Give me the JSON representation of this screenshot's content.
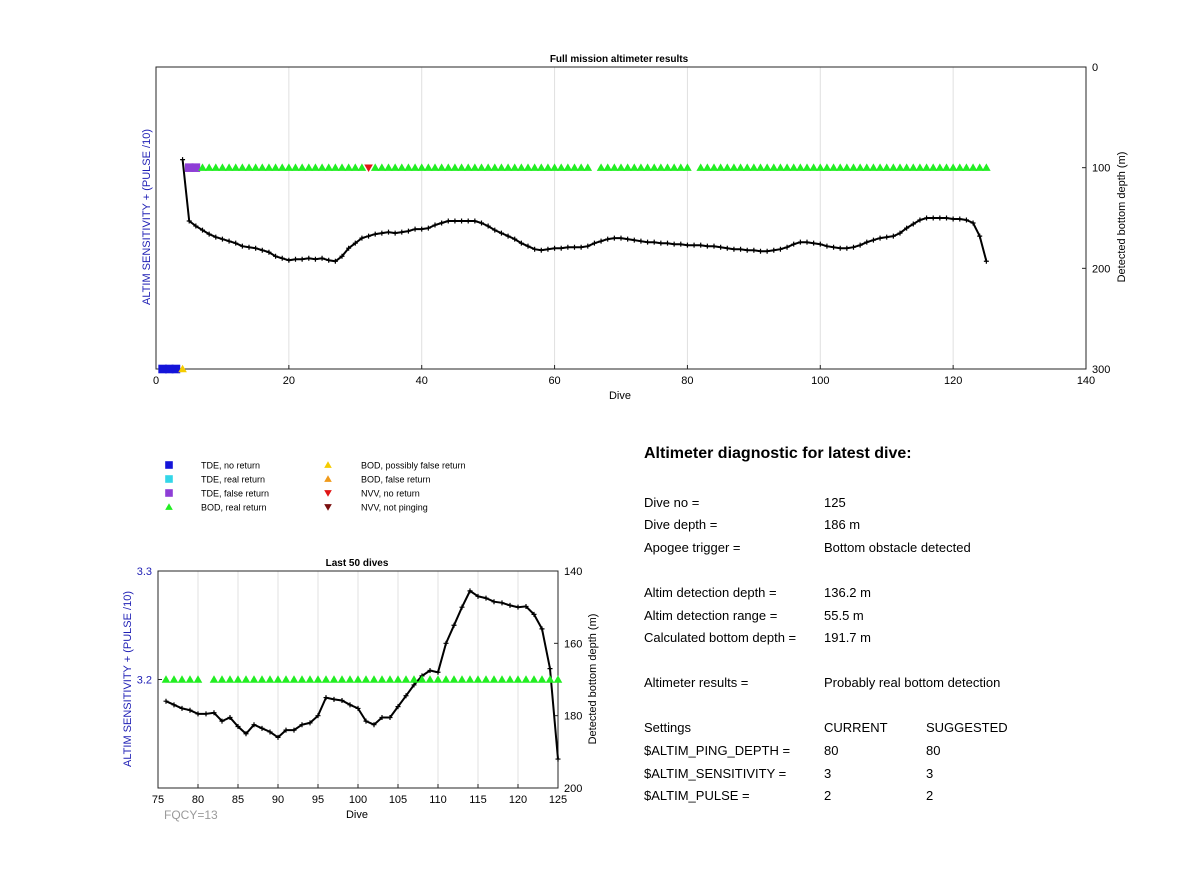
{
  "colors": {
    "TDE_no_return": "#1414d9",
    "TDE_real_return": "#33d6e8",
    "TDE_false_return": "#8e3ed6",
    "BOD_real_return": "#22ee22",
    "BOD_possibly_false_return": "#f5cc00",
    "BOD_false_return": "#f09a1a",
    "NVV_no_return": "#e01515",
    "NVV_not_pinging": "#7a0f0f",
    "depth_line": "#000000",
    "left_axis_label": "#1e1eb4",
    "grid": "#e0e0e0",
    "fqcy_text": "#9a9a9a"
  },
  "legend": [
    {
      "key": "TDE_no_return",
      "label": "TDE, no return",
      "marker": "square"
    },
    {
      "key": "TDE_real_return",
      "label": "TDE, real return",
      "marker": "square"
    },
    {
      "key": "TDE_false_return",
      "label": "TDE, false return",
      "marker": "square"
    },
    {
      "key": "BOD_real_return",
      "label": "BOD, real return",
      "marker": "triangle-up"
    },
    {
      "key": "BOD_possibly_false_return",
      "label": "BOD, possibly false return",
      "marker": "triangle-up"
    },
    {
      "key": "BOD_false_return",
      "label": "BOD, false return",
      "marker": "triangle-up"
    },
    {
      "key": "NVV_no_return",
      "label": "NVV, no return",
      "marker": "triangle-down"
    },
    {
      "key": "NVV_not_pinging",
      "label": "NVV, not pinging",
      "marker": "triangle-down"
    }
  ],
  "chart_data": [
    {
      "type": "line",
      "title": "Full mission altimeter results",
      "xlabel": "Dive",
      "ylabel": "ALTIM SENSITIVITY + (PULSE /10)",
      "ylabel_right": "Detected bottom depth (m)",
      "xlim": [
        0,
        140
      ],
      "xticks": [
        "0",
        "20",
        "40",
        "60",
        "80",
        "100",
        "120",
        "140"
      ],
      "yticks_right": [
        "0",
        "100",
        "200",
        "300"
      ],
      "ylim_right": [
        0,
        300
      ],
      "grid": "vertical",
      "depth_series": {
        "name": "Detected bottom depth (m)",
        "x": [
          4,
          5,
          6,
          7,
          8,
          9,
          10,
          11,
          12,
          13,
          14,
          15,
          16,
          17,
          18,
          19,
          20,
          21,
          22,
          23,
          24,
          25,
          26,
          27,
          28,
          29,
          30,
          31,
          32,
          33,
          34,
          35,
          36,
          37,
          38,
          39,
          40,
          41,
          42,
          43,
          44,
          45,
          46,
          47,
          48,
          49,
          50,
          51,
          52,
          53,
          54,
          55,
          56,
          57,
          58,
          59,
          60,
          61,
          62,
          63,
          64,
          65,
          66,
          67,
          68,
          69,
          70,
          71,
          72,
          73,
          74,
          75,
          76,
          77,
          78,
          79,
          80,
          81,
          82,
          83,
          84,
          85,
          86,
          87,
          88,
          89,
          90,
          91,
          92,
          93,
          94,
          95,
          96,
          97,
          98,
          99,
          100,
          101,
          102,
          103,
          104,
          105,
          106,
          107,
          108,
          109,
          110,
          111,
          112,
          113,
          114,
          115,
          116,
          117,
          118,
          119,
          120,
          121,
          122,
          123,
          124,
          125
        ],
        "values": [
          92,
          153,
          158,
          162,
          166,
          169,
          171,
          173,
          175,
          178,
          179,
          180,
          182,
          184,
          188,
          190,
          192,
          191,
          191,
          190,
          191,
          190,
          192,
          193,
          188,
          180,
          175,
          170,
          168,
          166,
          165,
          164,
          165,
          164,
          163,
          161,
          161,
          160,
          157,
          155,
          153,
          153,
          153,
          153,
          153,
          155,
          158,
          162,
          165,
          168,
          171,
          175,
          178,
          181,
          182,
          181,
          180,
          180,
          179,
          179,
          179,
          178,
          175,
          173,
          171,
          170,
          170,
          171,
          172,
          173,
          174,
          174,
          175,
          175,
          176,
          176,
          177,
          177,
          177,
          178,
          178,
          179,
          180,
          181,
          181,
          182,
          182,
          183,
          183,
          182,
          181,
          179,
          176,
          174,
          174,
          175,
          176,
          178,
          179,
          180,
          180,
          179,
          177,
          174,
          172,
          170,
          169,
          168,
          165,
          160,
          156,
          152,
          150,
          150,
          150,
          150,
          151,
          151,
          152,
          155,
          168,
          193
        ]
      },
      "status_markers": [
        {
          "key": "TDE_no_return",
          "x": [
            1,
            2,
            3
          ],
          "y": 3.0
        },
        {
          "key": "BOD_possibly_false_return",
          "x": [
            4
          ],
          "y": 3.0
        },
        {
          "key": "TDE_false_return",
          "x": [
            5,
            6
          ],
          "y": 3.2
        },
        {
          "key": "BOD_real_return",
          "x": [
            7,
            8,
            9,
            10,
            11,
            12,
            13,
            14,
            15,
            16,
            17,
            18,
            19,
            20,
            21,
            22,
            23,
            24,
            25,
            26,
            27,
            28,
            29,
            30,
            31,
            33,
            34,
            35,
            36,
            37,
            38,
            39,
            40,
            41,
            42,
            43,
            44,
            45,
            46,
            47,
            48,
            49,
            50,
            51,
            52,
            53,
            54,
            55,
            56,
            57,
            58,
            59,
            60,
            61,
            62,
            63,
            64,
            65,
            67,
            68,
            69,
            70,
            71,
            72,
            73,
            74,
            75,
            76,
            77,
            78,
            79,
            80,
            82,
            83,
            84,
            85,
            86,
            87,
            88,
            89,
            90,
            91,
            92,
            93,
            94,
            95,
            96,
            97,
            98,
            99,
            100,
            101,
            102,
            103,
            104,
            105,
            106,
            107,
            108,
            109,
            110,
            111,
            112,
            113,
            114,
            115,
            116,
            117,
            118,
            119,
            120,
            121,
            122,
            123,
            124,
            125
          ],
          "y": 3.2
        },
        {
          "key": "NVV_no_return",
          "x": [
            32
          ],
          "y": 3.2
        }
      ]
    },
    {
      "type": "line",
      "title": "Last 50 dives",
      "xlabel": "Dive",
      "ylabel": "ALTIM SENSITIVITY + (PULSE /10)",
      "ylabel_right": "Detected bottom depth (m)",
      "xlim": [
        75,
        125
      ],
      "xticks": [
        "75",
        "80",
        "85",
        "90",
        "95",
        "100",
        "105",
        "110",
        "115",
        "120",
        "125"
      ],
      "ylim_left": [
        3.1,
        3.3
      ],
      "yticks_left": [
        "3.2",
        "3.3"
      ],
      "ylim_right": [
        140,
        200
      ],
      "yticks_right": [
        "140",
        "160",
        "180",
        "200"
      ],
      "grid": "vertical",
      "depth_series": {
        "name": "Detected bottom depth (m)",
        "x": [
          76,
          77,
          78,
          79,
          80,
          81,
          82,
          83,
          84,
          85,
          86,
          87,
          88,
          89,
          90,
          91,
          92,
          93,
          94,
          95,
          96,
          97,
          98,
          99,
          100,
          101,
          102,
          103,
          104,
          105,
          106,
          107,
          108,
          109,
          110,
          111,
          112,
          113,
          114,
          115,
          116,
          117,
          118,
          119,
          120,
          121,
          122,
          123,
          124,
          125
        ],
        "values": [
          176,
          177,
          178,
          178.5,
          179.5,
          179.5,
          179.2,
          181.5,
          180.5,
          183,
          185,
          182.5,
          183.5,
          184.5,
          186,
          184,
          184,
          182.5,
          182,
          180,
          175,
          175.5,
          175.8,
          177,
          178,
          181.5,
          182.5,
          180.5,
          180.5,
          177.5,
          174.5,
          171.5,
          169,
          167.5,
          168,
          160,
          155,
          150,
          145.5,
          147,
          147.5,
          148.5,
          148.8,
          149.5,
          150,
          149.8,
          152,
          156,
          167,
          192
        ]
      },
      "status_markers": [
        {
          "key": "BOD_real_return",
          "x": [
            76,
            77,
            78,
            79,
            80,
            82,
            83,
            84,
            85,
            86,
            87,
            88,
            89,
            90,
            91,
            92,
            93,
            94,
            95,
            96,
            97,
            98,
            99,
            100,
            101,
            102,
            103,
            104,
            105,
            106,
            107,
            108,
            109,
            110,
            111,
            112,
            113,
            114,
            115,
            116,
            117,
            118,
            119,
            120,
            121,
            122,
            123,
            124,
            125
          ],
          "y": 3.2
        }
      ],
      "annotation": "FQCY=13"
    }
  ],
  "diagnostic": {
    "title": "Altimeter diagnostic for latest dive:",
    "dive_no_label": "Dive no =",
    "dive_no": "125",
    "dive_depth_label": "Dive depth =",
    "dive_depth": "186 m",
    "apogee_trigger_label": "Apogee trigger =",
    "apogee_trigger": "Bottom obstacle detected",
    "altim_detection_depth_label": "Altim detection depth =",
    "altim_detection_depth": "136.2 m",
    "altim_detection_range_label": "Altim detection range =",
    "altim_detection_range": "55.5 m",
    "calculated_bottom_depth_label": "Calculated bottom depth =",
    "calculated_bottom_depth": "191.7 m",
    "altimeter_results_label": "Altimeter results =",
    "altimeter_results": "Probably real bottom detection",
    "settings_label": "Settings",
    "current_label": "CURRENT",
    "suggested_label": "SUGGESTED",
    "settings": [
      {
        "name": "$ALTIM_PING_DEPTH =",
        "current": "80",
        "suggested": "80"
      },
      {
        "name": "$ALTIM_SENSITIVITY =",
        "current": "3",
        "suggested": "3"
      },
      {
        "name": "$ALTIM_PULSE =",
        "current": "2",
        "suggested": "2"
      }
    ]
  }
}
